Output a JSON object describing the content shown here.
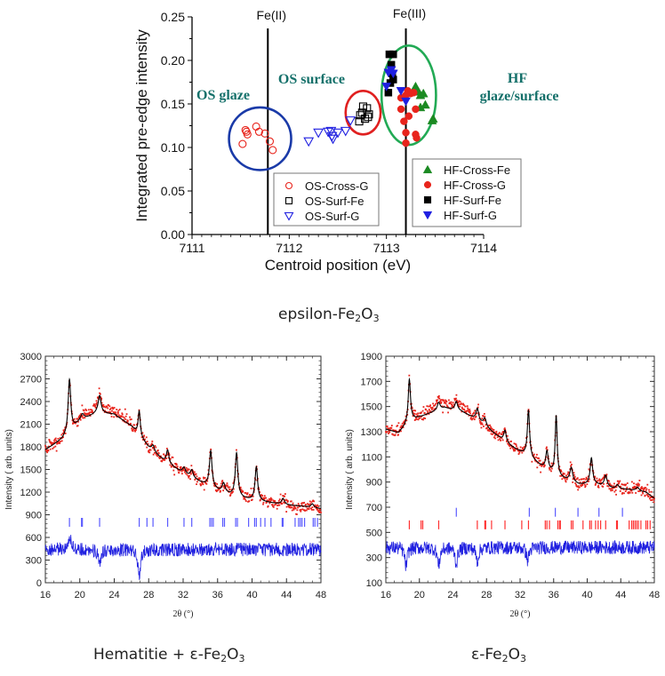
{
  "captions": {
    "top": {
      "prefix": "epsilon-Fe",
      "s1": "2",
      "mid": "O",
      "s2": "3"
    },
    "bottom_left": {
      "prefix": "Hematitie + ε-Fe",
      "s1": "2",
      "mid": "O",
      "s2": "3"
    },
    "bottom_right": {
      "prefix": "ε-Fe",
      "s1": "2",
      "mid": "O",
      "s2": "3"
    }
  },
  "colors": {
    "red": "#e8241c",
    "black": "#000000",
    "blue": "#1f1fe0",
    "green": "#1b8a22",
    "teal_text": "#14706a",
    "ellipse_blue": "#1a3aa8",
    "ellipse_red": "#e02020",
    "ellipse_green": "#22aa55",
    "tick_blue": "#5a5aff",
    "tick_red": "#ff3030"
  },
  "chart_data": [
    {
      "type": "scatter",
      "title": "",
      "xlabel": "Centroid position (eV)",
      "ylabel": "Integrated pre-edge intensity",
      "xlim": [
        7111,
        7114
      ],
      "ylim": [
        0.0,
        0.25
      ],
      "xticks": [
        "7111",
        "7112",
        "7113",
        "7114"
      ],
      "yticks": [
        "0.00",
        "0.05",
        "0.10",
        "0.15",
        "0.20",
        "0.25"
      ],
      "reference_lines": [
        {
          "label": "Fe(II)",
          "x": 7111.78
        },
        {
          "label": "Fe(III)",
          "x": 7113.2
        }
      ],
      "annotations": [
        {
          "text": "OS glaze"
        },
        {
          "text": "OS surface"
        },
        {
          "text": "HF"
        },
        {
          "text": "glaze/surface"
        }
      ],
      "ellipses": [
        {
          "name": "os-glaze-circle",
          "cx": 7111.7,
          "cy": 0.11,
          "rx": 0.32,
          "ry": 0.036,
          "color": "ellipse_blue"
        },
        {
          "name": "os-surface-circle",
          "cx": 7112.76,
          "cy": 0.14,
          "rx": 0.18,
          "ry": 0.025,
          "color": "ellipse_red"
        },
        {
          "name": "hf-circle",
          "cx": 7113.23,
          "cy": 0.16,
          "rx": 0.28,
          "ry": 0.057,
          "color": "ellipse_green"
        }
      ],
      "legend_left": [
        "OS-Cross-G",
        "OS-Surf-Fe",
        "OS-Surf-G"
      ],
      "legend_right": [
        "HF-Cross-Fe",
        "HF-Cross-G",
        "HF-Surf-Fe",
        "HF-Surf-G"
      ],
      "series": [
        {
          "name": "OS-Cross-G",
          "marker": "circle-open",
          "color": "red",
          "points": [
            [
              7111.52,
              0.104
            ],
            [
              7111.55,
              0.12
            ],
            [
              7111.57,
              0.115
            ],
            [
              7111.66,
              0.124
            ],
            [
              7111.69,
              0.118
            ],
            [
              7111.75,
              0.116
            ],
            [
              7111.8,
              0.107
            ],
            [
              7111.83,
              0.097
            ],
            [
              7111.56,
              0.118
            ]
          ]
        },
        {
          "name": "OS-Surf-Fe",
          "marker": "square-open",
          "color": "black",
          "points": [
            [
              7112.72,
              0.13
            ],
            [
              7112.75,
              0.14
            ],
            [
              7112.76,
              0.147
            ],
            [
              7112.8,
              0.145
            ],
            [
              7112.82,
              0.138
            ],
            [
              7112.78,
              0.133
            ],
            [
              7112.73,
              0.137
            ],
            [
              7112.81,
              0.135
            ]
          ]
        },
        {
          "name": "OS-Surf-G",
          "marker": "triangle-down-open",
          "color": "blue",
          "points": [
            [
              7112.2,
              0.107
            ],
            [
              7112.3,
              0.117
            ],
            [
              7112.4,
              0.118
            ],
            [
              7112.43,
              0.119
            ],
            [
              7112.45,
              0.11
            ],
            [
              7112.5,
              0.117
            ],
            [
              7112.58,
              0.119
            ],
            [
              7112.63,
              0.131
            ],
            [
              7112.44,
              0.113
            ]
          ]
        },
        {
          "name": "HF-Cross-Fe",
          "marker": "triangle-up-filled",
          "color": "green",
          "points": [
            [
              7113.3,
              0.17
            ],
            [
              7113.33,
              0.164
            ],
            [
              7113.35,
              0.16
            ],
            [
              7113.38,
              0.162
            ],
            [
              7113.35,
              0.146
            ],
            [
              7113.4,
              0.149
            ],
            [
              7113.47,
              0.131
            ],
            [
              7113.48,
              0.133
            ]
          ]
        },
        {
          "name": "HF-Cross-G",
          "marker": "circle-filled",
          "color": "red",
          "points": [
            [
              7113.15,
              0.157
            ],
            [
              7113.2,
              0.16
            ],
            [
              7113.22,
              0.165
            ],
            [
              7113.25,
              0.162
            ],
            [
              7113.28,
              0.163
            ],
            [
              7113.15,
              0.144
            ],
            [
              7113.23,
              0.136
            ],
            [
              7113.3,
              0.144
            ],
            [
              7113.18,
              0.13
            ],
            [
              7113.2,
              0.117
            ],
            [
              7113.3,
              0.115
            ],
            [
              7113.31,
              0.111
            ],
            [
              7113.2,
              0.105
            ]
          ]
        },
        {
          "name": "HF-Surf-Fe",
          "marker": "square-filled",
          "color": "black",
          "points": [
            [
              7113.03,
              0.207
            ],
            [
              7113.07,
              0.207
            ],
            [
              7113.05,
              0.195
            ],
            [
              7113.06,
              0.185
            ],
            [
              7113.07,
              0.178
            ],
            [
              7113.04,
              0.174
            ],
            [
              7113.02,
              0.163
            ]
          ]
        },
        {
          "name": "HF-Surf-G",
          "marker": "triangle-down-filled",
          "color": "blue",
          "points": [
            [
              7113.02,
              0.186
            ],
            [
              7113.05,
              0.189
            ],
            [
              7113.07,
              0.185
            ],
            [
              7113.0,
              0.17
            ],
            [
              7113.15,
              0.165
            ],
            [
              7113.2,
              0.153
            ]
          ]
        }
      ]
    },
    {
      "type": "line",
      "title": "",
      "xlabel": "2θ (°)",
      "ylabel": "Intensity  ( arb. units)",
      "xlim": [
        16,
        48
      ],
      "ylim": [
        0,
        3000
      ],
      "xticks": [
        "16",
        "20",
        "24",
        "28",
        "32",
        "36",
        "40",
        "44",
        "48"
      ],
      "yticks": [
        "0",
        "300",
        "600",
        "900",
        "1200",
        "1500",
        "1800",
        "2100",
        "2400",
        "2700",
        "3000"
      ],
      "background": [
        [
          16,
          1760
        ],
        [
          18,
          1900
        ],
        [
          20,
          2130
        ],
        [
          22,
          2250
        ],
        [
          24,
          2230
        ],
        [
          26,
          2070
        ],
        [
          28,
          1790
        ],
        [
          30,
          1590
        ],
        [
          32,
          1450
        ],
        [
          34,
          1330
        ],
        [
          36,
          1220
        ],
        [
          38,
          1140
        ],
        [
          40,
          1090
        ],
        [
          42,
          1060
        ],
        [
          44,
          1030
        ],
        [
          46,
          1010
        ],
        [
          48,
          980
        ]
      ],
      "peaks": [
        [
          18.8,
          700,
          0.18
        ],
        [
          20.3,
          80,
          0.25
        ],
        [
          22.3,
          230,
          0.2
        ],
        [
          26.9,
          330,
          0.15
        ],
        [
          28.5,
          80,
          0.2
        ],
        [
          30.2,
          180,
          0.18
        ],
        [
          32.1,
          80,
          0.2
        ],
        [
          33.0,
          100,
          0.2
        ],
        [
          35.2,
          480,
          0.18
        ],
        [
          36.7,
          120,
          0.2
        ],
        [
          38.2,
          580,
          0.18
        ],
        [
          40.5,
          450,
          0.18
        ],
        [
          43.6,
          80,
          0.2
        ],
        [
          47.0,
          50,
          0.2
        ]
      ],
      "difference_baseline": 440,
      "difference_dips": [
        [
          22.3,
          -230
        ],
        [
          26.9,
          -380
        ],
        [
          18.8,
          200
        ]
      ],
      "ticks_series": [
        {
          "name": "phase-1",
          "color": "tick_blue",
          "y": 800,
          "positions": [
            18.8,
            20.2,
            20.3,
            22.3,
            26.9,
            27.8,
            28.5,
            30.2,
            32.1,
            33.0,
            35.1,
            35.3,
            35.5,
            36.6,
            36.8,
            38.1,
            38.3,
            39.6,
            40.3,
            40.5,
            41.0,
            41.5,
            42.2,
            43.5,
            43.6,
            45.0,
            45.4,
            45.6,
            45.8,
            46.1,
            47.1,
            47.3,
            47.6
          ]
        }
      ]
    },
    {
      "type": "line",
      "title": "",
      "xlabel": "2θ (°)",
      "ylabel": "Intensity  ( arb. units)",
      "xlim": [
        16,
        48
      ],
      "ylim": [
        100,
        1900
      ],
      "xticks": [
        "16",
        "20",
        "24",
        "28",
        "32",
        "36",
        "40",
        "44",
        "48"
      ],
      "yticks": [
        "100",
        "300",
        "500",
        "700",
        "900",
        "1100",
        "1300",
        "1500",
        "1700",
        "1900"
      ],
      "background": [
        [
          16,
          1320
        ],
        [
          17.5,
          1290
        ],
        [
          19,
          1390
        ],
        [
          21,
          1440
        ],
        [
          23,
          1490
        ],
        [
          25,
          1460
        ],
        [
          27,
          1390
        ],
        [
          29,
          1280
        ],
        [
          31,
          1180
        ],
        [
          33,
          1100
        ],
        [
          35,
          1000
        ],
        [
          37,
          930
        ],
        [
          39,
          880
        ],
        [
          41,
          880
        ],
        [
          43,
          850
        ],
        [
          45,
          840
        ],
        [
          47,
          820
        ],
        [
          48,
          770
        ]
      ],
      "peaks": [
        [
          18.8,
          340,
          0.16
        ],
        [
          22.3,
          60,
          0.2
        ],
        [
          24.4,
          70,
          0.2
        ],
        [
          26.9,
          90,
          0.18
        ],
        [
          27.8,
          60,
          0.2
        ],
        [
          30.2,
          90,
          0.18
        ],
        [
          33.0,
          370,
          0.16
        ],
        [
          35.2,
          150,
          0.18
        ],
        [
          36.3,
          470,
          0.14
        ],
        [
          38.1,
          110,
          0.2
        ],
        [
          40.5,
          210,
          0.18
        ],
        [
          42.2,
          90,
          0.2
        ],
        [
          43.6,
          30,
          0.2
        ],
        [
          46.0,
          30,
          0.2
        ]
      ],
      "difference_baseline": 380,
      "difference_dips": [
        [
          18.4,
          -150
        ],
        [
          22.3,
          -140
        ],
        [
          24.4,
          -130
        ],
        [
          26.9,
          -110
        ],
        [
          32.9,
          -100
        ]
      ],
      "ticks_series": [
        {
          "name": "phase-1",
          "color": "tick_blue",
          "y": 660,
          "positions": [
            24.4,
            33.1,
            36.2,
            38.9,
            41.4,
            44.2
          ]
        },
        {
          "name": "phase-2",
          "color": "tick_red",
          "y": 560,
          "positions": [
            18.8,
            20.2,
            20.4,
            22.3,
            26.9,
            27.8,
            27.9,
            28.6,
            30.2,
            32.2,
            33.0,
            35.0,
            35.2,
            35.5,
            36.5,
            36.7,
            36.8,
            38.1,
            38.3,
            39.5,
            40.3,
            40.5,
            41.0,
            41.3,
            41.6,
            42.2,
            43.5,
            43.6,
            45.0,
            45.3,
            45.5,
            45.7,
            45.9,
            46.1,
            46.4,
            47.0,
            47.2,
            47.5
          ]
        }
      ]
    }
  ]
}
